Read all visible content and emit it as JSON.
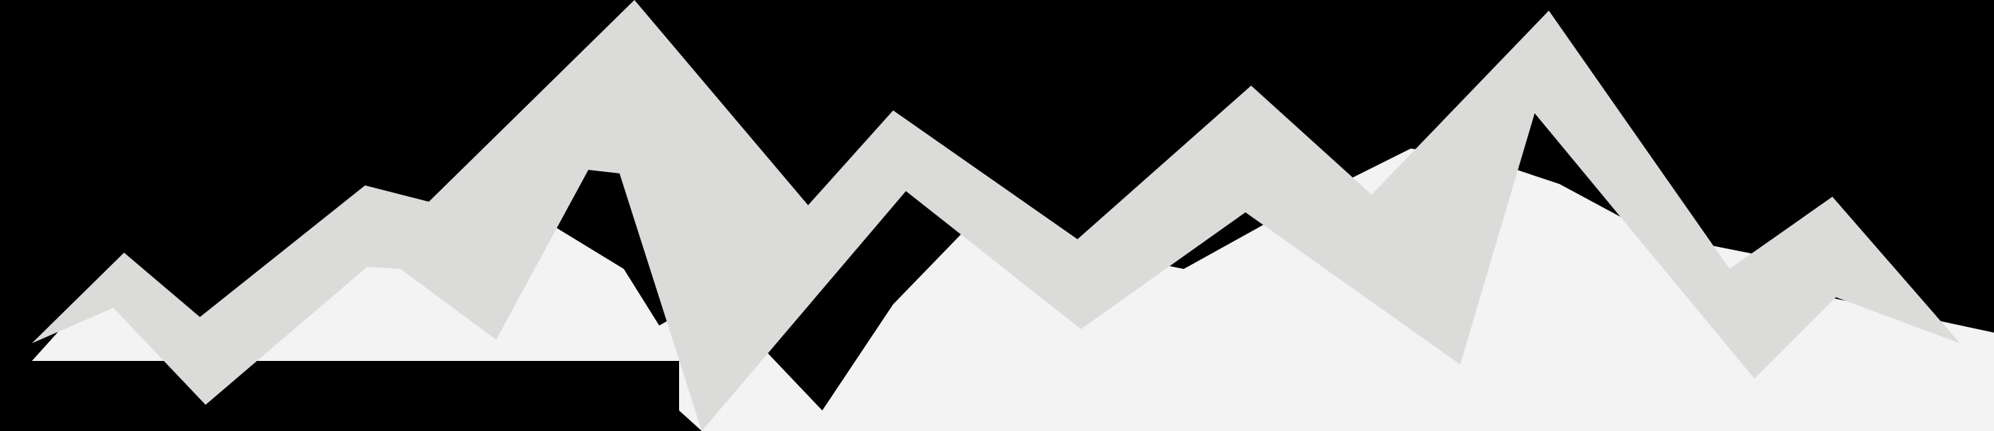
{
  "colors": {
    "background": "#000000",
    "ribbon": "#dbdbd9",
    "lower_panel": "#f3f3f3"
  }
}
